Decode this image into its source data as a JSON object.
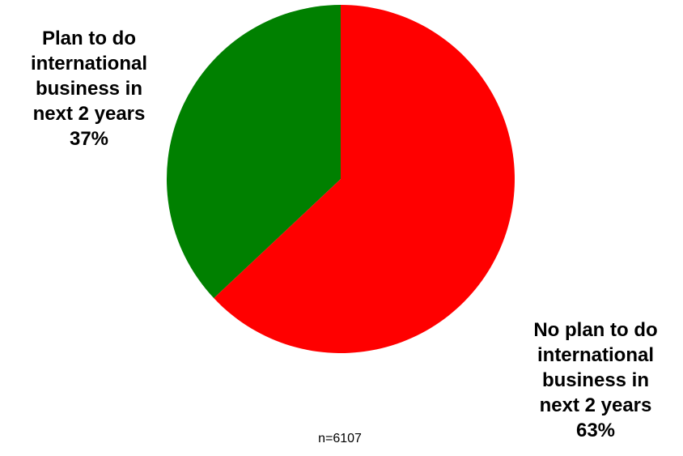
{
  "chart_data": {
    "type": "pie",
    "slices": [
      {
        "label_lines": [
          "Plan to do",
          "international",
          "business in",
          "next 2 years"
        ],
        "percent_label": "37%",
        "value": 37,
        "color": "#008000"
      },
      {
        "label_lines": [
          "No plan to do",
          "international",
          "business in",
          "next 2 years"
        ],
        "percent_label": "63%",
        "value": 63,
        "color": "#ff0000"
      }
    ],
    "note": "n=6107"
  }
}
